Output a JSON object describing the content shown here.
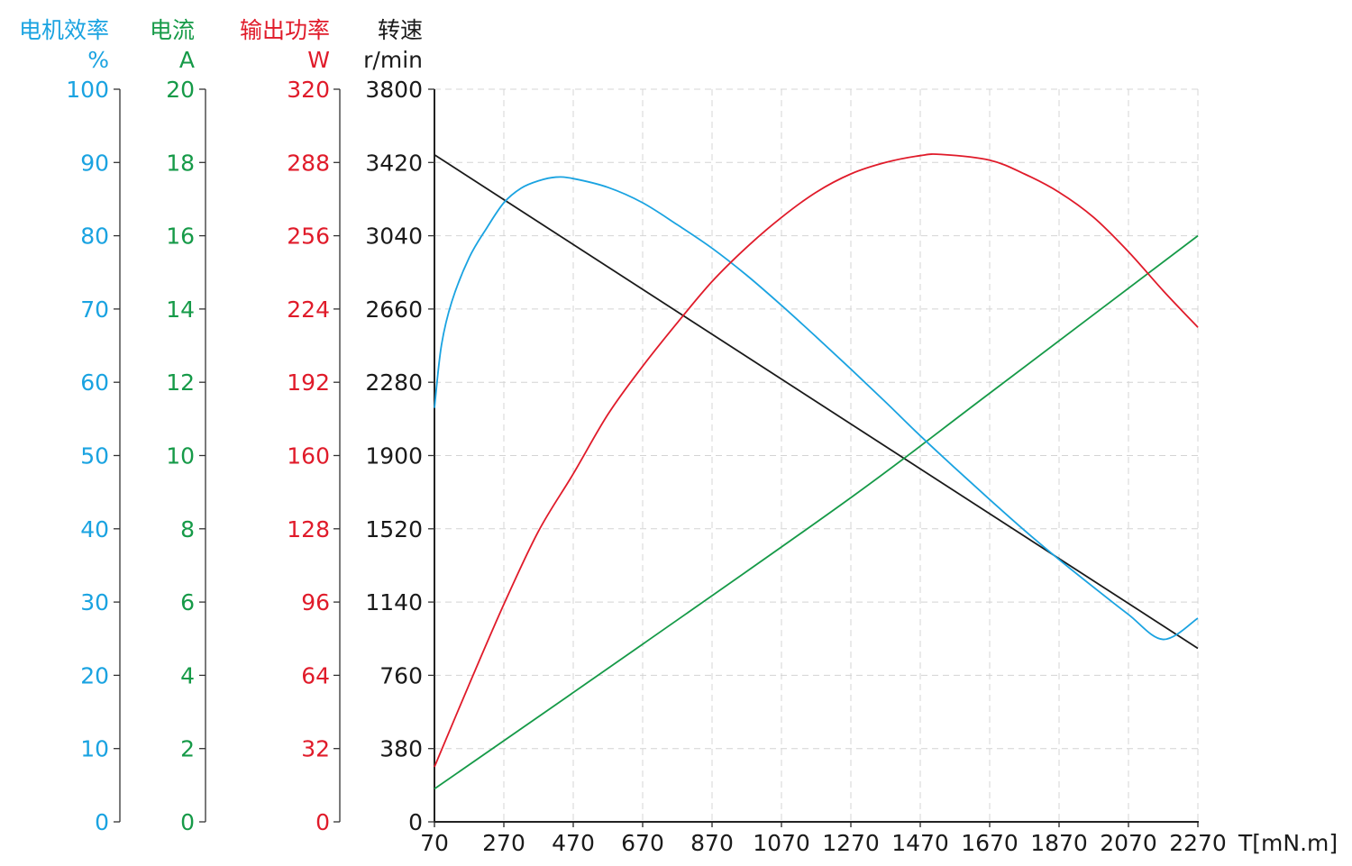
{
  "chart_data": {
    "type": "line",
    "x_axis": {
      "label": "T[mN.m]",
      "range": [
        70,
        2270
      ],
      "ticks": [
        "70",
        "270",
        "470",
        "670",
        "870",
        "1070",
        "1270",
        "1470",
        "1670",
        "1870",
        "2070",
        "2270"
      ]
    },
    "y_axes": [
      {
        "id": "efficiency",
        "title": "电机效率",
        "unit": "%",
        "color": "#1aa3e1",
        "range": [
          0,
          100
        ],
        "ticks": [
          "0",
          "10",
          "20",
          "30",
          "40",
          "50",
          "60",
          "70",
          "80",
          "90",
          "100"
        ]
      },
      {
        "id": "current",
        "title": "电流",
        "unit": "A",
        "color": "#169a48",
        "range": [
          0,
          20
        ],
        "ticks": [
          "0",
          "2",
          "4",
          "6",
          "8",
          "10",
          "12",
          "14",
          "16",
          "18",
          "20"
        ]
      },
      {
        "id": "power",
        "title": "输出功率",
        "unit": "W",
        "color": "#e01b2a",
        "range": [
          0,
          320
        ],
        "ticks": [
          "0",
          "32",
          "64",
          "96",
          "128",
          "160",
          "192",
          "224",
          "256",
          "288",
          "320"
        ]
      },
      {
        "id": "speed",
        "title": "转速",
        "unit": "r/min",
        "color": "#1a1a1a",
        "range": [
          0,
          3800
        ],
        "ticks": [
          "0",
          "380",
          "760",
          "1140",
          "1520",
          "1900",
          "2280",
          "2660",
          "3040",
          "3420",
          "3800"
        ]
      }
    ],
    "grid": true,
    "series": [
      {
        "axis": "speed",
        "color": "#1a1a1a",
        "points": [
          [
            70,
            3460
          ],
          [
            2270,
            900
          ]
        ]
      },
      {
        "axis": "current",
        "color": "#169a48",
        "points": [
          [
            70,
            0.9
          ],
          [
            670,
            4.85
          ],
          [
            1270,
            8.85
          ],
          [
            1670,
            11.7
          ],
          [
            2270,
            16.0
          ]
        ]
      },
      {
        "axis": "efficiency",
        "color": "#1aa3e1",
        "points": [
          [
            70,
            56.5
          ],
          [
            90,
            65
          ],
          [
            120,
            71
          ],
          [
            170,
            77
          ],
          [
            220,
            81
          ],
          [
            270,
            84.5
          ],
          [
            320,
            86.5
          ],
          [
            370,
            87.5
          ],
          [
            420,
            88.0
          ],
          [
            470,
            87.8
          ],
          [
            570,
            86.6
          ],
          [
            670,
            84.5
          ],
          [
            770,
            81.5
          ],
          [
            870,
            78.3
          ],
          [
            970,
            74.6
          ],
          [
            1070,
            70.5
          ],
          [
            1170,
            66.2
          ],
          [
            1270,
            61.8
          ],
          [
            1370,
            57.3
          ],
          [
            1470,
            52.7
          ],
          [
            1570,
            48.3
          ],
          [
            1670,
            44.0
          ],
          [
            1770,
            39.8
          ],
          [
            1870,
            35.8
          ],
          [
            1970,
            32.0
          ],
          [
            2070,
            28.3
          ],
          [
            2170,
            24.9
          ],
          [
            2270,
            27.8
          ]
        ]
      },
      {
        "axis": "power",
        "color": "#e01b2a",
        "points": [
          [
            70,
            24
          ],
          [
            170,
            60
          ],
          [
            270,
            95
          ],
          [
            370,
            127
          ],
          [
            470,
            152
          ],
          [
            570,
            178
          ],
          [
            670,
            199
          ],
          [
            770,
            218
          ],
          [
            870,
            236
          ],
          [
            970,
            251
          ],
          [
            1070,
            264
          ],
          [
            1170,
            275
          ],
          [
            1270,
            283
          ],
          [
            1370,
            288
          ],
          [
            1470,
            291
          ],
          [
            1530,
            291.5
          ],
          [
            1670,
            289
          ],
          [
            1770,
            283
          ],
          [
            1870,
            275
          ],
          [
            1970,
            264
          ],
          [
            2070,
            249
          ],
          [
            2170,
            232
          ],
          [
            2270,
            216
          ]
        ]
      }
    ]
  }
}
